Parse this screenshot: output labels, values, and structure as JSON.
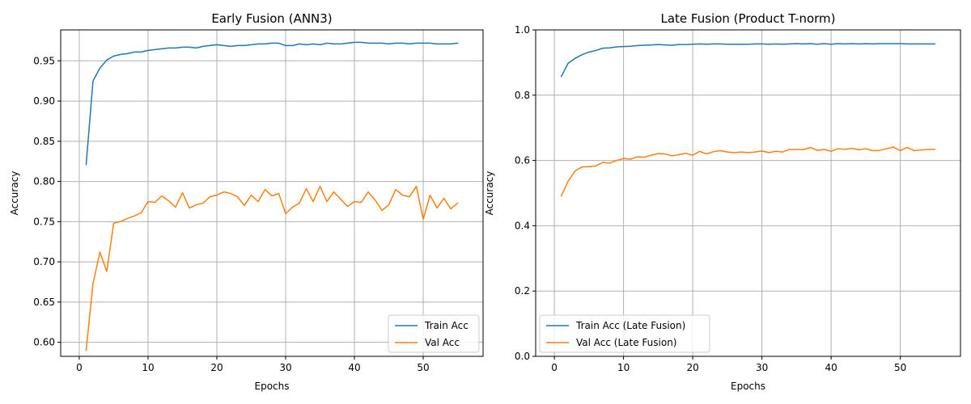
{
  "chart_data": [
    {
      "type": "line",
      "title": "Early Fusion (ANN3)",
      "xlabel": "Epochs",
      "ylabel": "Accuracy",
      "xlim": [
        -2.7,
        58.7
      ],
      "ylim": [
        0.5825,
        0.9885
      ],
      "xticks": [
        0,
        10,
        20,
        30,
        40,
        50
      ],
      "yticks": [
        0.6,
        0.65,
        0.7,
        0.75,
        0.8,
        0.85,
        0.9,
        0.95
      ],
      "ytick_labels": [
        "0.60",
        "0.65",
        "0.70",
        "0.75",
        "0.80",
        "0.85",
        "0.90",
        "0.95"
      ],
      "grid": true,
      "legend_position": "lower right",
      "series": [
        {
          "name": "Train Acc",
          "color": "#1f77b4",
          "x": [
            1,
            2,
            3,
            4,
            5,
            6,
            7,
            8,
            9,
            10,
            11,
            12,
            13,
            14,
            15,
            16,
            17,
            18,
            19,
            20,
            21,
            22,
            23,
            24,
            25,
            26,
            27,
            28,
            29,
            30,
            31,
            32,
            33,
            34,
            35,
            36,
            37,
            38,
            39,
            40,
            41,
            42,
            43,
            44,
            45,
            46,
            47,
            48,
            49,
            50,
            51,
            52,
            53,
            54,
            55
          ],
          "values": [
            0.821,
            0.925,
            0.941,
            0.951,
            0.956,
            0.958,
            0.959,
            0.961,
            0.961,
            0.963,
            0.964,
            0.965,
            0.966,
            0.966,
            0.967,
            0.967,
            0.966,
            0.968,
            0.969,
            0.97,
            0.969,
            0.968,
            0.969,
            0.969,
            0.97,
            0.971,
            0.971,
            0.972,
            0.972,
            0.969,
            0.969,
            0.971,
            0.97,
            0.971,
            0.97,
            0.972,
            0.971,
            0.971,
            0.972,
            0.973,
            0.973,
            0.972,
            0.972,
            0.972,
            0.971,
            0.972,
            0.972,
            0.971,
            0.972,
            0.972,
            0.972,
            0.971,
            0.971,
            0.971,
            0.972
          ]
        },
        {
          "name": "Val Acc",
          "color": "#ff7f0e",
          "x": [
            1,
            2,
            3,
            4,
            5,
            6,
            7,
            8,
            9,
            10,
            11,
            12,
            13,
            14,
            15,
            16,
            17,
            18,
            19,
            20,
            21,
            22,
            23,
            24,
            25,
            26,
            27,
            28,
            29,
            30,
            31,
            32,
            33,
            34,
            35,
            36,
            37,
            38,
            39,
            40,
            41,
            42,
            43,
            44,
            45,
            46,
            47,
            48,
            49,
            50,
            51,
            52,
            53,
            54,
            55
          ],
          "values": [
            0.59,
            0.673,
            0.712,
            0.688,
            0.748,
            0.75,
            0.754,
            0.757,
            0.761,
            0.775,
            0.774,
            0.782,
            0.776,
            0.768,
            0.786,
            0.767,
            0.771,
            0.773,
            0.781,
            0.783,
            0.787,
            0.785,
            0.781,
            0.77,
            0.783,
            0.775,
            0.79,
            0.782,
            0.785,
            0.76,
            0.768,
            0.773,
            0.791,
            0.775,
            0.794,
            0.775,
            0.787,
            0.778,
            0.769,
            0.775,
            0.774,
            0.787,
            0.777,
            0.764,
            0.771,
            0.79,
            0.783,
            0.781,
            0.794,
            0.753,
            0.783,
            0.767,
            0.779,
            0.766,
            0.773
          ]
        }
      ]
    },
    {
      "type": "line",
      "title": "Late Fusion (Product T-norm)",
      "xlabel": "Epochs",
      "ylabel": "Accuracy",
      "xlim": [
        -2.7,
        58.7
      ],
      "ylim": [
        0.0,
        1.0
      ],
      "xticks": [
        0,
        10,
        20,
        30,
        40,
        50
      ],
      "yticks": [
        0.0,
        0.2,
        0.4,
        0.6,
        0.8,
        1.0
      ],
      "ytick_labels": [
        "0.0",
        "0.2",
        "0.4",
        "0.6",
        "0.8",
        "1.0"
      ],
      "grid": true,
      "legend_position": "lower left",
      "series": [
        {
          "name": "Train Acc (Late Fusion)",
          "color": "#1f77b4",
          "x": [
            1,
            2,
            3,
            4,
            5,
            6,
            7,
            8,
            9,
            10,
            11,
            12,
            13,
            14,
            15,
            16,
            17,
            18,
            19,
            20,
            21,
            22,
            23,
            24,
            25,
            26,
            27,
            28,
            29,
            30,
            31,
            32,
            33,
            34,
            35,
            36,
            37,
            38,
            39,
            40,
            41,
            42,
            43,
            44,
            45,
            46,
            47,
            48,
            49,
            50,
            51,
            52,
            53,
            54,
            55
          ],
          "values": [
            0.857,
            0.898,
            0.913,
            0.924,
            0.932,
            0.937,
            0.944,
            0.945,
            0.948,
            0.949,
            0.95,
            0.952,
            0.953,
            0.954,
            0.955,
            0.954,
            0.953,
            0.955,
            0.955,
            0.956,
            0.957,
            0.956,
            0.957,
            0.957,
            0.956,
            0.956,
            0.956,
            0.956,
            0.957,
            0.957,
            0.956,
            0.957,
            0.956,
            0.957,
            0.958,
            0.957,
            0.958,
            0.956,
            0.958,
            0.956,
            0.958,
            0.957,
            0.958,
            0.957,
            0.958,
            0.957,
            0.958,
            0.958,
            0.958,
            0.958,
            0.957,
            0.957,
            0.957,
            0.957,
            0.957
          ]
        },
        {
          "name": "Val Acc (Late Fusion)",
          "color": "#ff7f0e",
          "x": [
            1,
            2,
            3,
            4,
            5,
            6,
            7,
            8,
            9,
            10,
            11,
            12,
            13,
            14,
            15,
            16,
            17,
            18,
            19,
            20,
            21,
            22,
            23,
            24,
            25,
            26,
            27,
            28,
            29,
            30,
            31,
            32,
            33,
            34,
            35,
            36,
            37,
            38,
            39,
            40,
            41,
            42,
            43,
            44,
            45,
            46,
            47,
            48,
            49,
            50,
            51,
            52,
            53,
            54,
            55
          ],
          "values": [
            0.491,
            0.537,
            0.568,
            0.58,
            0.581,
            0.583,
            0.594,
            0.592,
            0.6,
            0.606,
            0.604,
            0.611,
            0.61,
            0.616,
            0.621,
            0.62,
            0.614,
            0.618,
            0.622,
            0.616,
            0.628,
            0.62,
            0.627,
            0.63,
            0.626,
            0.624,
            0.626,
            0.624,
            0.626,
            0.629,
            0.624,
            0.628,
            0.626,
            0.634,
            0.634,
            0.633,
            0.64,
            0.631,
            0.634,
            0.628,
            0.636,
            0.634,
            0.637,
            0.633,
            0.636,
            0.63,
            0.631,
            0.636,
            0.641,
            0.63,
            0.64,
            0.63,
            0.632,
            0.634,
            0.634
          ]
        }
      ]
    }
  ]
}
